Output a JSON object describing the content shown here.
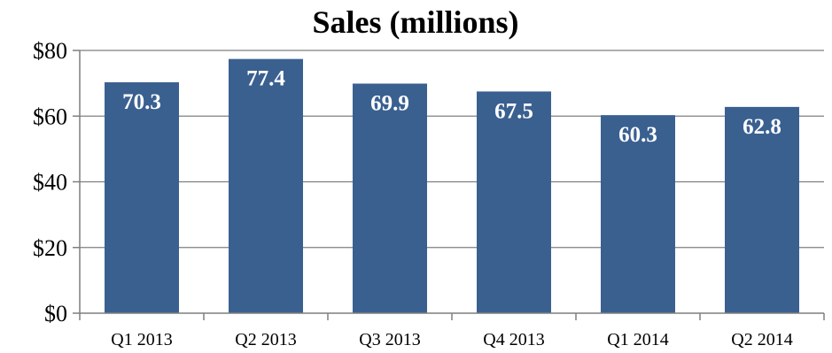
{
  "chart_data": {
    "type": "bar",
    "title": "Sales (millions)",
    "xlabel": "",
    "ylabel": "",
    "categories": [
      "Q1 2013",
      "Q2 2013",
      "Q3 2013",
      "Q4 2013",
      "Q1 2014",
      "Q2 2014"
    ],
    "values": [
      70.3,
      77.4,
      69.9,
      67.5,
      60.3,
      62.8
    ],
    "data_labels": [
      "70.3",
      "77.4",
      "69.9",
      "67.5",
      "60.3",
      "62.8"
    ],
    "ylim": [
      0,
      80
    ],
    "yticks": [
      0,
      20,
      40,
      60,
      80
    ],
    "ytick_labels": [
      "$0",
      "$20",
      "$40",
      "$60",
      "$80"
    ],
    "grid": true,
    "legend": "none",
    "bar_color": "#3a6090",
    "label_color": "#ffffff"
  }
}
